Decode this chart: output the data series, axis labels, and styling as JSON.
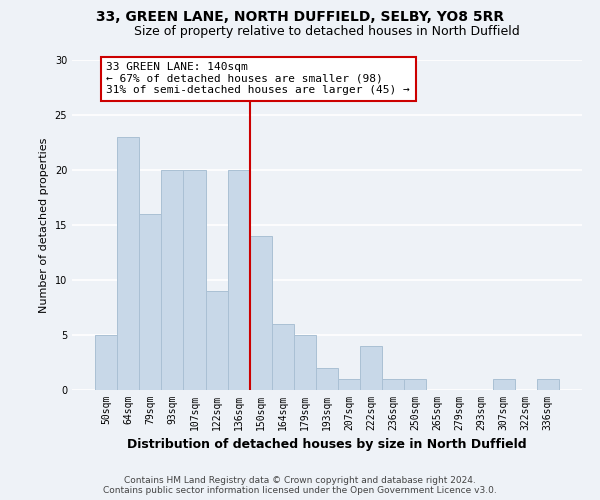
{
  "title": "33, GREEN LANE, NORTH DUFFIELD, SELBY, YO8 5RR",
  "subtitle": "Size of property relative to detached houses in North Duffield",
  "xlabel": "Distribution of detached houses by size in North Duffield",
  "ylabel": "Number of detached properties",
  "bar_labels": [
    "50sqm",
    "64sqm",
    "79sqm",
    "93sqm",
    "107sqm",
    "122sqm",
    "136sqm",
    "150sqm",
    "164sqm",
    "179sqm",
    "193sqm",
    "207sqm",
    "222sqm",
    "236sqm",
    "250sqm",
    "265sqm",
    "279sqm",
    "293sqm",
    "307sqm",
    "322sqm",
    "336sqm"
  ],
  "bar_values": [
    5,
    23,
    16,
    20,
    20,
    9,
    20,
    14,
    6,
    5,
    2,
    1,
    4,
    1,
    1,
    0,
    0,
    0,
    1,
    0,
    1
  ],
  "bar_color": "#c8d8e8",
  "bar_edge_color": "#aac0d4",
  "vline_x_index": 6,
  "vline_color": "#cc0000",
  "annotation_title": "33 GREEN LANE: 140sqm",
  "annotation_line1": "← 67% of detached houses are smaller (98)",
  "annotation_line2": "31% of semi-detached houses are larger (45) →",
  "annotation_box_edge_color": "#cc0000",
  "annotation_box_face_color": "#ffffff",
  "ylim": [
    0,
    30
  ],
  "yticks": [
    0,
    5,
    10,
    15,
    20,
    25,
    30
  ],
  "footer_line1": "Contains HM Land Registry data © Crown copyright and database right 2024.",
  "footer_line2": "Contains public sector information licensed under the Open Government Licence v3.0.",
  "bg_color": "#eef2f7",
  "plot_bg_color": "#eef2f7",
  "grid_color": "#ffffff",
  "title_fontsize": 10,
  "subtitle_fontsize": 9,
  "xlabel_fontsize": 9,
  "ylabel_fontsize": 8,
  "tick_fontsize": 7,
  "annotation_fontsize": 8,
  "footer_fontsize": 6.5
}
